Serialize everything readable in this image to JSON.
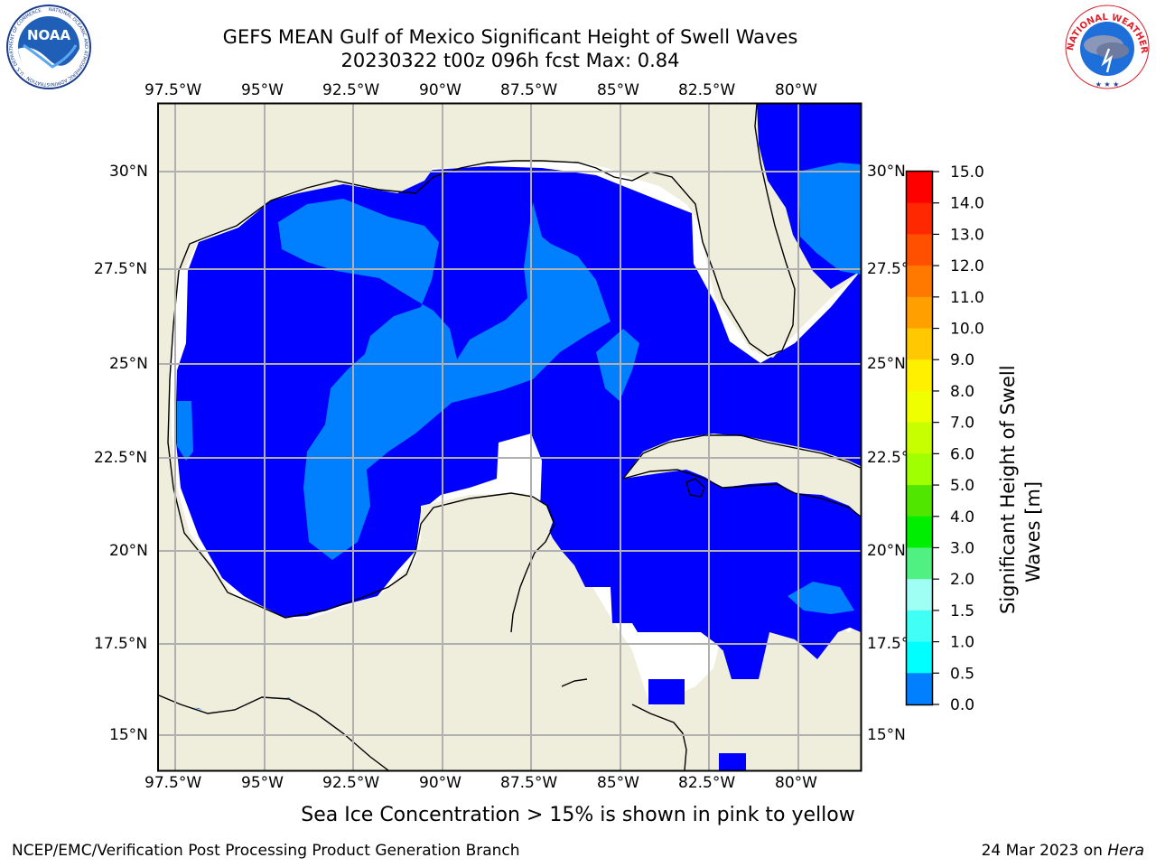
{
  "title": {
    "line1": "GEFS MEAN Gulf of Mexico Significant Height of Swell Waves",
    "line2": "20230322 t00z 096h fcst   Max: 0.84"
  },
  "logos": {
    "left": "NOAA",
    "left_ring_text": "NATIONAL OCEANIC AND ATMOSPHERIC ADMINISTRATION · U.S. DEPARTMENT OF COMMERCE",
    "right_ring_text": "NATIONAL WEATHER SERVICE"
  },
  "map": {
    "lon_ticks": [
      "97.5°W",
      "95°W",
      "92.5°W",
      "90°W",
      "87.5°W",
      "85°W",
      "82.5°W",
      "80°W"
    ],
    "lat_ticks_left": [
      "30°N",
      "27.5°N",
      "25°N",
      "22.5°N",
      "20°N",
      "17.5°N",
      "15°N"
    ],
    "lat_ticks_right": [
      "30°N",
      "27.5°N",
      "25°N",
      "22.5°N",
      "20°N",
      "17.5°N",
      "15°N"
    ],
    "colors": {
      "land": "#efeedc",
      "ocean_low": "#0000ff",
      "ocean_mid": "#0080ff",
      "no_data": "#ffffff",
      "grid": "#b0b0b0"
    }
  },
  "colorbar": {
    "label": "Significant Height of Swell Waves [m]",
    "ticks": [
      "15.0",
      "14.0",
      "13.0",
      "12.0",
      "11.0",
      "10.0",
      "9.0",
      "8.0",
      "7.0",
      "6.0",
      "5.0",
      "4.0",
      "3.0",
      "2.0",
      "1.5",
      "1.0",
      "0.5",
      "0.0"
    ],
    "colors": [
      "#ff0000",
      "#ff2800",
      "#ff5000",
      "#ff7800",
      "#ffa000",
      "#ffc800",
      "#fff000",
      "#f0ff00",
      "#c8ff00",
      "#a0ff00",
      "#50e600",
      "#00ee00",
      "#50f082",
      "#a0fff5",
      "#40fff5",
      "#00ffff",
      "#0080ff",
      "#0000ff"
    ]
  },
  "note": "Sea Ice Concentration > 15% is shown in pink to yellow",
  "footer": {
    "left": "NCEP/EMC/Verification Post Processing Product Generation Branch",
    "date": "24 Mar 2023 on ",
    "machine": "Hera"
  }
}
